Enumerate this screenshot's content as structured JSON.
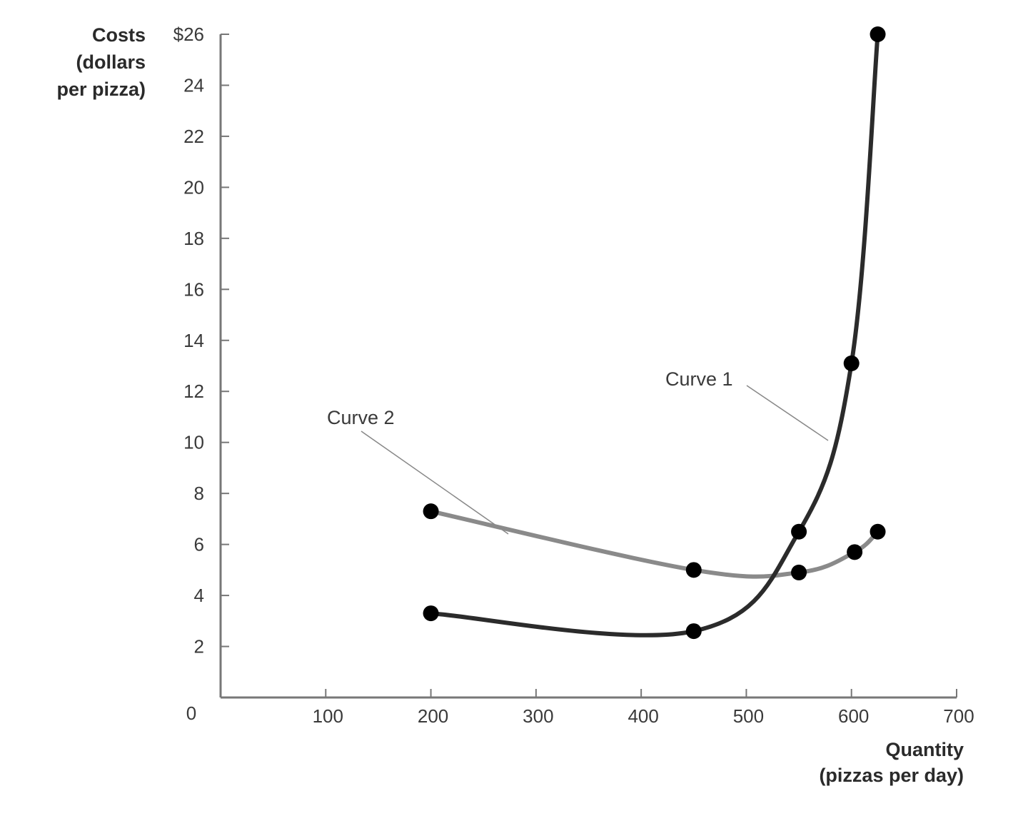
{
  "chart_data": {
    "type": "line",
    "title": "",
    "xlabel": "Quantity (pizzas per day)",
    "ylabel": "Costs (dollars per pizza)",
    "xlim": [
      0,
      700
    ],
    "ylim": [
      0,
      26
    ],
    "x_ticks": [
      100,
      200,
      300,
      400,
      500,
      600,
      700
    ],
    "y_ticks": [
      2,
      4,
      6,
      8,
      10,
      12,
      14,
      16,
      18,
      20,
      22,
      24,
      26
    ],
    "x_tick_labels": [
      "100",
      "200",
      "300",
      "400",
      "500",
      "600",
      "700"
    ],
    "y_tick_labels": [
      "2",
      "4",
      "6",
      "8",
      "10",
      "12",
      "14",
      "16",
      "18",
      "20",
      "22",
      "24",
      "$26"
    ],
    "origin_label": "0",
    "grid": false,
    "legend": "none (curves labeled with annotations)",
    "series": [
      {
        "name": "Curve 1",
        "color": "#2b2b2b",
        "points": [
          [
            200,
            3.3
          ],
          [
            450,
            2.6
          ],
          [
            550,
            6.5
          ],
          [
            600,
            13.1
          ],
          [
            625,
            26
          ]
        ]
      },
      {
        "name": "Curve 2",
        "color": "#8a8a8a",
        "points": [
          [
            200,
            7.3
          ],
          [
            450,
            5.0
          ],
          [
            550,
            4.9
          ],
          [
            603,
            5.7
          ],
          [
            625,
            6.5
          ]
        ]
      }
    ],
    "annotations": [
      {
        "text": "Curve 1",
        "points_to": "Curve 1 near (580, 10)"
      },
      {
        "text": "Curve 2",
        "points_to": "Curve 2 near (275, 6.4)"
      }
    ]
  },
  "labels": {
    "y_title_line1": "Costs",
    "y_title_line2": "(dollars",
    "y_title_line3": "per pizza)",
    "x_title_line1": "Quantity",
    "x_title_line2": "(pizzas per day)",
    "curve1": "Curve 1",
    "curve2": "Curve 2"
  }
}
